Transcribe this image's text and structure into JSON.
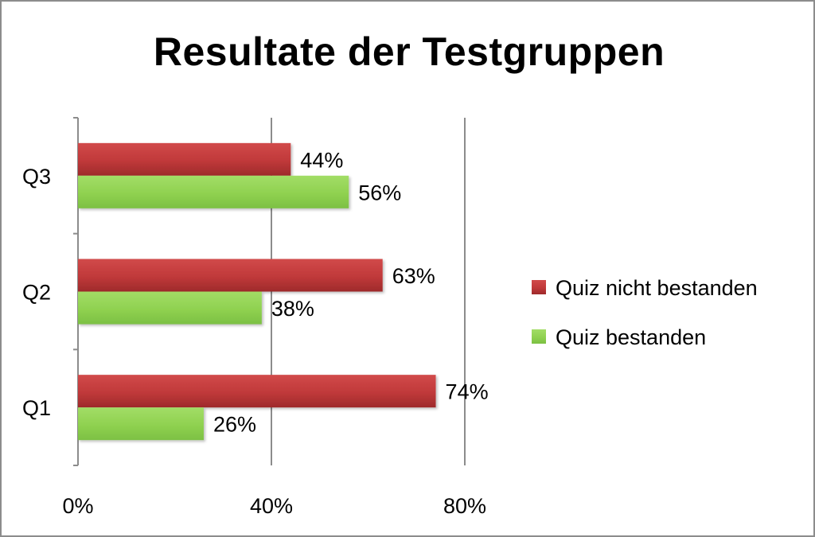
{
  "chart_data": {
    "type": "bar",
    "orientation": "horizontal",
    "title": "Resultate der Testgruppen",
    "categories": [
      "Q1",
      "Q2",
      "Q3"
    ],
    "series": [
      {
        "name": "Quiz nicht bestanden",
        "values": [
          74,
          63,
          44
        ],
        "color": "#c0393a"
      },
      {
        "name": "Quiz bestanden",
        "values": [
          26,
          38,
          56
        ],
        "color": "#8fd150"
      }
    ],
    "x_ticks": [
      "0%",
      "40%",
      "80%"
    ],
    "data_labels": [
      [
        "74%",
        "63%",
        "44%"
      ],
      [
        "26%",
        "38%",
        "56%"
      ]
    ],
    "xlim": [
      0,
      80
    ],
    "unit": "%",
    "grid": "vertical",
    "legend_position": "right"
  }
}
